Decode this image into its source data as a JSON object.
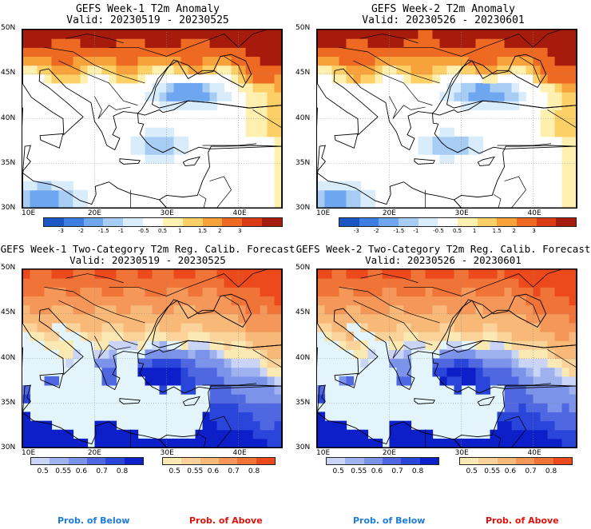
{
  "panels": {
    "tl": {
      "title": "GEFS Week-1 T2m Anomaly",
      "valid": "Valid: 20230519 - 20230525"
    },
    "tr": {
      "title": "GEFS Week-2 T2m Anomaly",
      "valid": "Valid: 20230526 - 20230601"
    },
    "bl": {
      "title": "GEFS Week-1 Two-Category T2m Reg. Calib. Forecast",
      "valid": "Valid: 20230519 - 20230525"
    },
    "br": {
      "title": "GEFS Week-2 Two-Category T2m Reg. Calib. Forecast",
      "valid": "Valid: 20230526 - 20230601"
    }
  },
  "axes": {
    "lat_labels": [
      "50N",
      "45N",
      "40N",
      "35N",
      "30N"
    ],
    "lon_labels": [
      "10E",
      "20E",
      "30E",
      "40E"
    ]
  },
  "anomaly_colorbar": {
    "labels": [
      "-3",
      "-2",
      "-1.5",
      "-1",
      "-0.5",
      "0.5",
      "1",
      "1.5",
      "2",
      "3"
    ],
    "colors": [
      "#1a56c4",
      "#3d7fe0",
      "#6ea7ef",
      "#a8cdf5",
      "#d9ecfb",
      "#ffffff",
      "#fff0b0",
      "#fdd067",
      "#f7a23a",
      "#ee6a23",
      "#d83b14",
      "#a71b0d"
    ]
  },
  "prob_below_colorbar": {
    "labels": [
      "0.5",
      "0.55",
      "0.6",
      "0.7",
      "0.8"
    ],
    "colors": [
      "#c9d4f6",
      "#9fb2f0",
      "#7c93ea",
      "#4f68e2",
      "#2a45d9",
      "#0d1fc8"
    ]
  },
  "prob_above_colorbar": {
    "labels": [
      "0.5",
      "0.55",
      "0.6",
      "0.7",
      "0.8"
    ],
    "colors": [
      "#fbe9b4",
      "#fbd29a",
      "#f7b878",
      "#f59758",
      "#f07438",
      "#ec4a1c"
    ]
  },
  "colors": {
    "sea": "#e3f5fb",
    "above_text": "#e0120d",
    "below_text": "#1e7bd9"
  },
  "footer": {
    "below_label": "Prob. of Below",
    "above_label": "Prob. of Above"
  }
}
